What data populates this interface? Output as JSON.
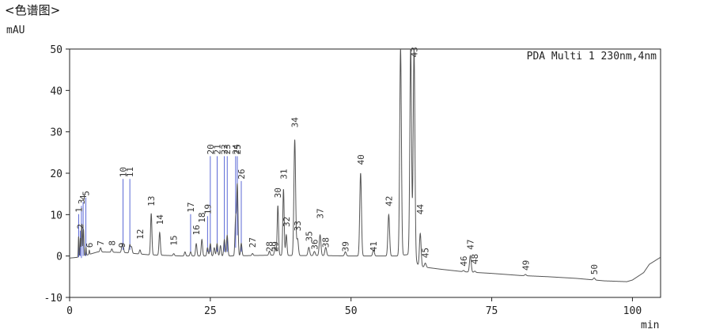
{
  "title": "<色谱图>",
  "chart_data": {
    "type": "line",
    "ylabel": "mAU",
    "xlabel": "min",
    "annotation": "PDA Multi 1 230nm,4nm",
    "xlim": [
      0,
      105
    ],
    "ylim": [
      -10,
      50
    ],
    "x_ticks": [
      0,
      25,
      50,
      75,
      100
    ],
    "y_ticks": [
      -10,
      0,
      10,
      20,
      30,
      40,
      50
    ],
    "grid": false,
    "colors": {
      "trace": "#555555",
      "axis": "#222222",
      "leader": "#3344cc"
    },
    "baseline": [
      [
        0,
        -0.5
      ],
      [
        1.5,
        -0.3
      ],
      [
        3,
        0.2
      ],
      [
        5,
        1
      ],
      [
        8,
        0.9
      ],
      [
        10,
        0.8
      ],
      [
        14,
        0.3
      ],
      [
        20,
        0
      ],
      [
        28,
        0
      ],
      [
        36,
        0.2
      ],
      [
        40,
        0.1
      ],
      [
        45,
        0.1
      ],
      [
        50,
        0
      ],
      [
        55,
        0
      ],
      [
        58,
        0
      ],
      [
        61,
        0.5
      ],
      [
        62,
        -2.5
      ],
      [
        66,
        -3.2
      ],
      [
        70,
        -3.8
      ],
      [
        75,
        -4.2
      ],
      [
        80,
        -4.7
      ],
      [
        85,
        -5
      ],
      [
        90,
        -5.4
      ],
      [
        95,
        -6
      ],
      [
        99,
        -6.2
      ],
      [
        100,
        -5.8
      ],
      [
        102,
        -4
      ],
      [
        103,
        -2
      ],
      [
        105,
        -0.3
      ]
    ],
    "peaks": [
      {
        "label": "1",
        "time": 1.6,
        "height": 5,
        "label_y": 10.5,
        "lead_y": -0.3
      },
      {
        "label": "2",
        "time": 1.9,
        "height": 4.5,
        "label_y": 6.5,
        "lead_y": 0
      },
      {
        "label": "3",
        "time": 2.1,
        "height": 5,
        "label_y": 12.5,
        "lead_y": -0.5
      },
      {
        "label": "4",
        "time": 2.4,
        "height": 4,
        "label_y": 13.5,
        "lead_y": 0
      },
      {
        "label": "5",
        "time": 2.9,
        "height": 2,
        "label_y": 14.5,
        "lead_y": 0
      },
      {
        "label": "6",
        "time": 3.5,
        "height": 1,
        "label_y": 2,
        "lead_y": null
      },
      {
        "label": "7",
        "time": 5.5,
        "height": 1,
        "label_y": 2.5,
        "lead_y": null
      },
      {
        "label": "8",
        "time": 7.5,
        "height": 0.8,
        "label_y": 2.5,
        "lead_y": null
      },
      {
        "label": "9",
        "time": 9.3,
        "height": 1.2,
        "label_y": 2,
        "lead_y": null
      },
      {
        "label": "10",
        "time": 9.5,
        "height": 1.5,
        "label_y": 19,
        "lead_y": 1.5
      },
      {
        "label": "11",
        "time": 10.7,
        "height": 2,
        "label_y": 19,
        "lead_y": 1.5
      },
      {
        "label": "12",
        "time": 12.5,
        "height": 1,
        "label_y": 4,
        "lead_y": null
      },
      {
        "label": "13",
        "time": 14.5,
        "height": 10,
        "label_y": 12,
        "lead_y": null
      },
      {
        "label": "14",
        "time": 16.0,
        "height": 5.5,
        "label_y": 7.5,
        "lead_y": null
      },
      {
        "label": "15",
        "time": 18.5,
        "height": 0.5,
        "label_y": 2.5,
        "lead_y": null
      },
      {
        "label": "16",
        "time": 22.5,
        "height": 3,
        "label_y": 5,
        "lead_y": null
      },
      {
        "label": "17",
        "time": 21.5,
        "height": 1,
        "label_y": 10.5,
        "lead_y": 1
      },
      {
        "label": "18",
        "time": 23.5,
        "height": 4,
        "label_y": 8,
        "lead_y": null
      },
      {
        "label": "19",
        "time": 24.5,
        "height": 2,
        "label_y": 10,
        "lead_y": 1
      },
      {
        "label": "20",
        "time": 25.0,
        "height": 3,
        "label_y": 24.5,
        "lead_y": 1
      },
      {
        "label": "21",
        "time": 26.2,
        "height": 3,
        "label_y": 24.5,
        "lead_y": 1
      },
      {
        "label": "22",
        "time": 27.5,
        "height": 4,
        "label_y": 24.5,
        "lead_y": 1
      },
      {
        "label": "23",
        "time": 28.0,
        "height": 5,
        "label_y": 24.5,
        "lead_y": 1
      },
      {
        "label": "24",
        "time": 29.5,
        "height": 9,
        "label_y": 24.5,
        "lead_y": 2
      },
      {
        "label": "25",
        "time": 29.8,
        "height": 17,
        "label_y": 24.5,
        "lead_y": 5
      },
      {
        "label": "26",
        "time": 30.5,
        "height": 3,
        "label_y": 18.5,
        "lead_y": 1
      },
      {
        "label": "27",
        "time": 32.5,
        "height": 0.5,
        "label_y": 2,
        "lead_y": null
      },
      {
        "label": "28",
        "time": 35.5,
        "height": 1,
        "label_y": 1,
        "lead_y": null
      },
      {
        "label": "29",
        "time": 36.5,
        "height": 2,
        "label_y": 1,
        "lead_y": null
      },
      {
        "label": "30",
        "time": 37.0,
        "height": 12,
        "label_y": 14,
        "lead_y": null
      },
      {
        "label": "31",
        "time": 38.0,
        "height": 16,
        "label_y": 18.5,
        "lead_y": null
      },
      {
        "label": "32",
        "time": 38.5,
        "height": 5,
        "label_y": 7,
        "lead_y": null
      },
      {
        "label": "33",
        "time": 40.5,
        "height": 4,
        "label_y": 6,
        "lead_y": null
      },
      {
        "label": "34",
        "time": 40.0,
        "height": 28,
        "label_y": 31,
        "lead_y": null
      },
      {
        "label": "35",
        "time": 42.5,
        "height": 2,
        "label_y": 3.5,
        "lead_y": null
      },
      {
        "label": "36",
        "time": 43.5,
        "height": 1,
        "label_y": 1.5,
        "lead_y": null
      },
      {
        "label": "37",
        "time": 44.5,
        "height": 5,
        "label_y": 9,
        "lead_y": null
      },
      {
        "label": "38",
        "time": 45.5,
        "height": 2,
        "label_y": 2,
        "lead_y": null
      },
      {
        "label": "39",
        "time": 49.0,
        "height": 1,
        "label_y": 1,
        "lead_y": null
      },
      {
        "label": "40",
        "time": 51.7,
        "height": 20,
        "label_y": 22,
        "lead_y": null
      },
      {
        "label": "41",
        "time": 54.0,
        "height": 1.5,
        "label_y": 1,
        "lead_y": null
      },
      {
        "label": "42",
        "time": 56.7,
        "height": 10,
        "label_y": 12,
        "lead_y": null
      },
      {
        "label": "43",
        "time": 61.2,
        "height": 50,
        "label_y": 48,
        "lead_y": null
      },
      {
        "label": "44",
        "time": 62.3,
        "height": 8,
        "label_y": 10,
        "lead_y": null
      },
      {
        "label": "45",
        "time": 63.2,
        "height": 1,
        "label_y": -0.5,
        "lead_y": null
      },
      {
        "label": "46",
        "time": 70.0,
        "height": 0.3,
        "label_y": -2.5,
        "lead_y": null
      },
      {
        "label": "47",
        "time": 71.2,
        "height": 4,
        "label_y": 1.5,
        "lead_y": null
      },
      {
        "label": "48",
        "time": 72.0,
        "height": 0.3,
        "label_y": -2,
        "lead_y": null
      },
      {
        "label": "49",
        "time": 81.0,
        "height": 0.3,
        "label_y": -3.5,
        "lead_y": null
      },
      {
        "label": "50",
        "time": 93.2,
        "height": 0.5,
        "label_y": -4.5,
        "lead_y": null
      }
    ],
    "extra_peaks": [
      {
        "time": 2.2,
        "height": 6
      },
      {
        "time": 2.5,
        "height": 5
      },
      {
        "time": 11.0,
        "height": 1.5
      },
      {
        "time": 20.5,
        "height": 1
      },
      {
        "time": 25.7,
        "height": 2
      },
      {
        "time": 26.8,
        "height": 2.5
      },
      {
        "time": 58.8,
        "height": 50
      },
      {
        "time": 60.6,
        "height": 50
      }
    ]
  }
}
